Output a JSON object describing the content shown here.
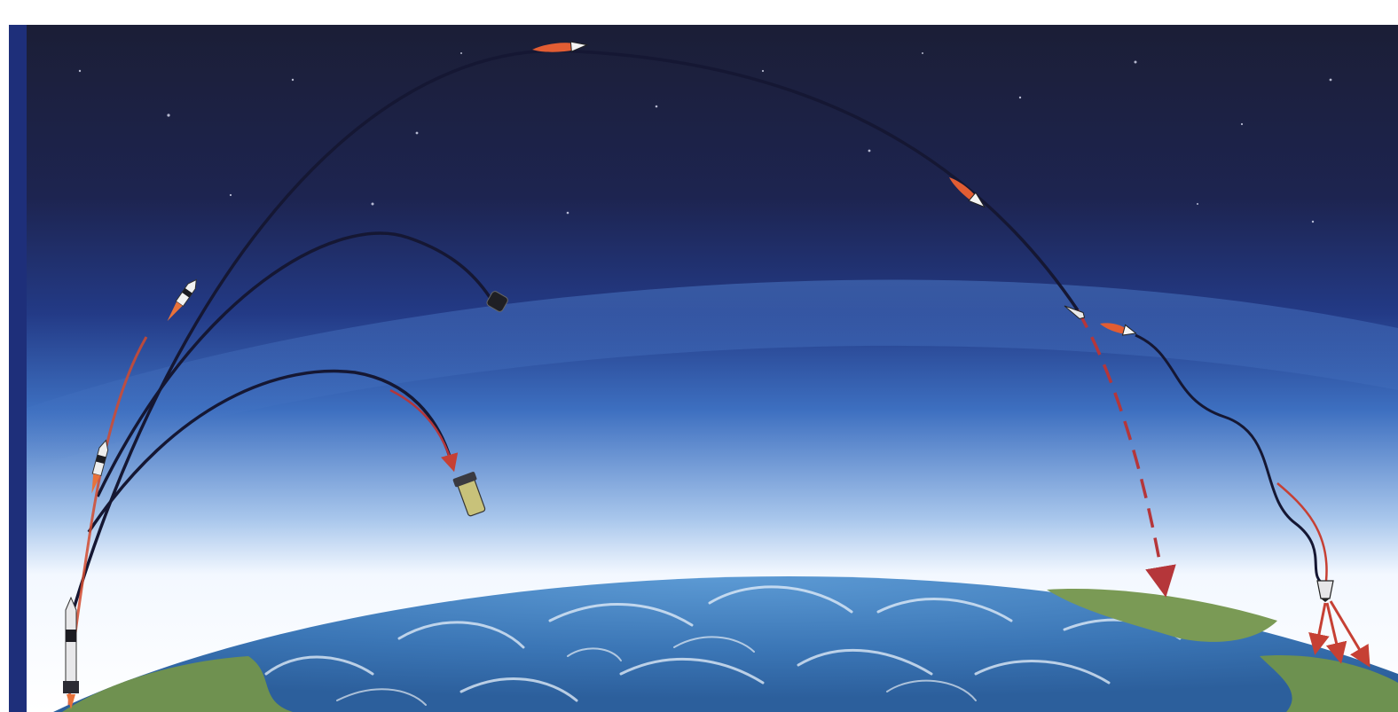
{
  "illustration": {
    "subject": "",
    "trajectories": [
      {
        "id": "short-arc",
        "ends_with": "falling-stage"
      },
      {
        "id": "medium-arc",
        "ends_with": "capsule"
      },
      {
        "id": "long-arc",
        "ends_with": "reentry-vehicle"
      }
    ],
    "colors": {
      "space_top": "#1b1f38",
      "space_mid": "#1f2c68",
      "atmosphere": "#2f58ae",
      "horizon_glow": "#f7fbff",
      "ocean": "#3d79b8",
      "land": "#7a9a55",
      "trail_dark": "#151733",
      "flame": "#e06a3b",
      "dash": "#b5363a",
      "border": "#1e2f7a"
    },
    "icons": [
      "rocket-icon",
      "capsule-icon",
      "stage-icon",
      "reentry-vehicle-icon",
      "arrow-down-icon",
      "star-icon"
    ]
  }
}
